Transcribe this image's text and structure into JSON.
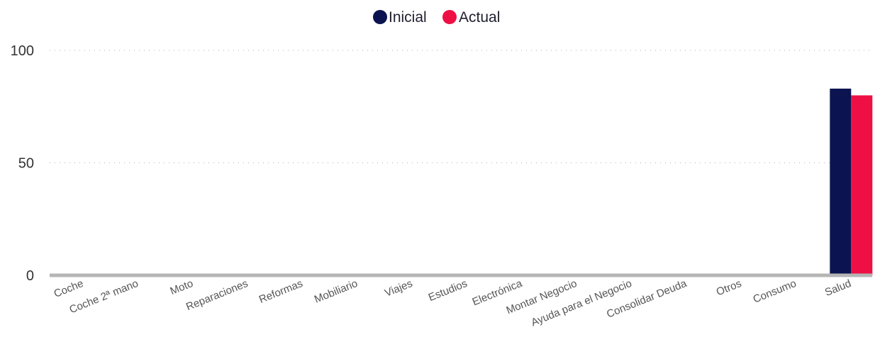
{
  "chart_data": {
    "type": "bar",
    "title": "",
    "xlabel": "",
    "ylabel": "",
    "ylim": [
      0,
      100
    ],
    "yticks": [
      0,
      50,
      100
    ],
    "grid": true,
    "legend_position": "top-center",
    "categories": [
      "Coche",
      "Coche 2ª mano",
      "Moto",
      "Reparaciones",
      "Reformas",
      "Mobiliario",
      "Viajes",
      "Estudios",
      "Electrónica",
      "Montar Negocio",
      "Ayuda para el Negocio",
      "Consolidar Deuda",
      "Otros",
      "Consumo",
      "Salud"
    ],
    "series": [
      {
        "name": "Inicial",
        "color": "#0b1450",
        "values": [
          0,
          0,
          0,
          0,
          0,
          0,
          0,
          0,
          0,
          0,
          0,
          0,
          0,
          0,
          83
        ]
      },
      {
        "name": "Actual",
        "color": "#ee1045",
        "values": [
          0,
          0,
          0,
          0,
          0,
          0,
          0,
          0,
          0,
          0,
          0,
          0,
          0,
          0,
          80
        ]
      }
    ]
  }
}
